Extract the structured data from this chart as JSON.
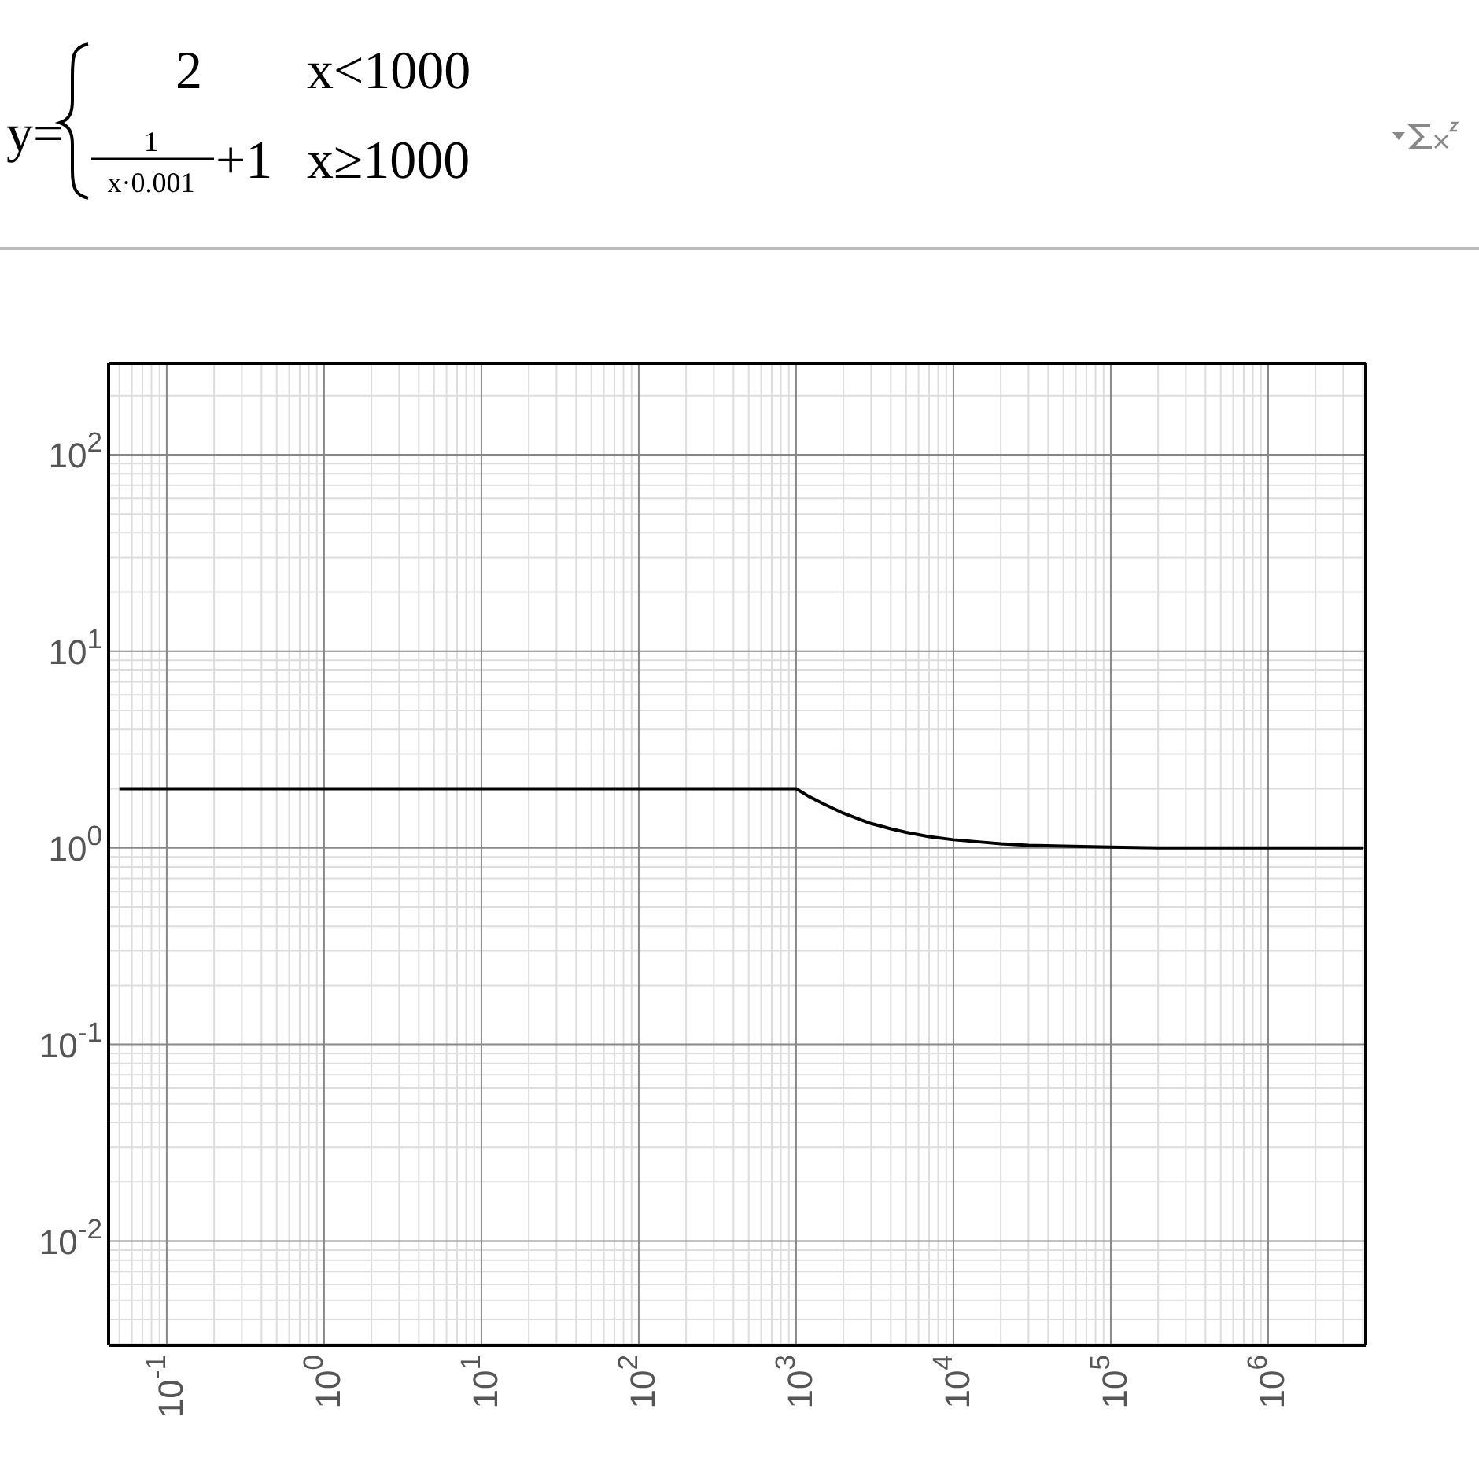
{
  "chart_data": {
    "type": "line",
    "log": "xy",
    "grid": true,
    "marker": "none",
    "line_style": "solid",
    "annotations": [
      "y=",
      "2",
      "x<1000",
      "1",
      "x·0.001",
      "+1",
      "x≥1000"
    ],
    "x": [
      0.05,
      1000,
      1200,
      1500,
      2000,
      2500,
      3000,
      4000,
      5000,
      7000,
      10000,
      15000,
      20000,
      30000,
      50000,
      100000,
      200000,
      1000000,
      4000000
    ],
    "series": [
      {
        "color": "#000000",
        "values": [
          2,
          2,
          1.83,
          1.67,
          1.5,
          1.4,
          1.33,
          1.25,
          1.2,
          1.14,
          1.1,
          1.07,
          1.05,
          1.03,
          1.02,
          1.01,
          1.0,
          1.0,
          1.0
        ]
      }
    ],
    "xlim": [
      0.0427,
      4170000
    ],
    "ylim": [
      0.00295,
      291
    ],
    "xticks": [
      {
        "value": 0.1,
        "label": "10$^{-1}$"
      },
      {
        "value": 1,
        "label": "10$^{0}$"
      },
      {
        "value": 10,
        "label": "10$^{1}$"
      },
      {
        "value": 100,
        "label": "10$^{2}$"
      },
      {
        "value": 1000,
        "label": "10$^{3}$"
      },
      {
        "value": 10000,
        "label": "10$^{4}$"
      },
      {
        "value": 100000,
        "label": "10$^{5}$"
      },
      {
        "value": 1000000,
        "label": "10$^{6}$"
      }
    ],
    "yticks": [
      {
        "value": 0.01,
        "label": "10$^{-2}$"
      },
      {
        "value": 0.1,
        "label": "10$^{-1}$"
      },
      {
        "value": 1,
        "label": "10$^{0}$"
      },
      {
        "value": 10,
        "label": "10$^{1}$"
      },
      {
        "value": 100,
        "label": "10$^{2}$"
      }
    ]
  }
}
